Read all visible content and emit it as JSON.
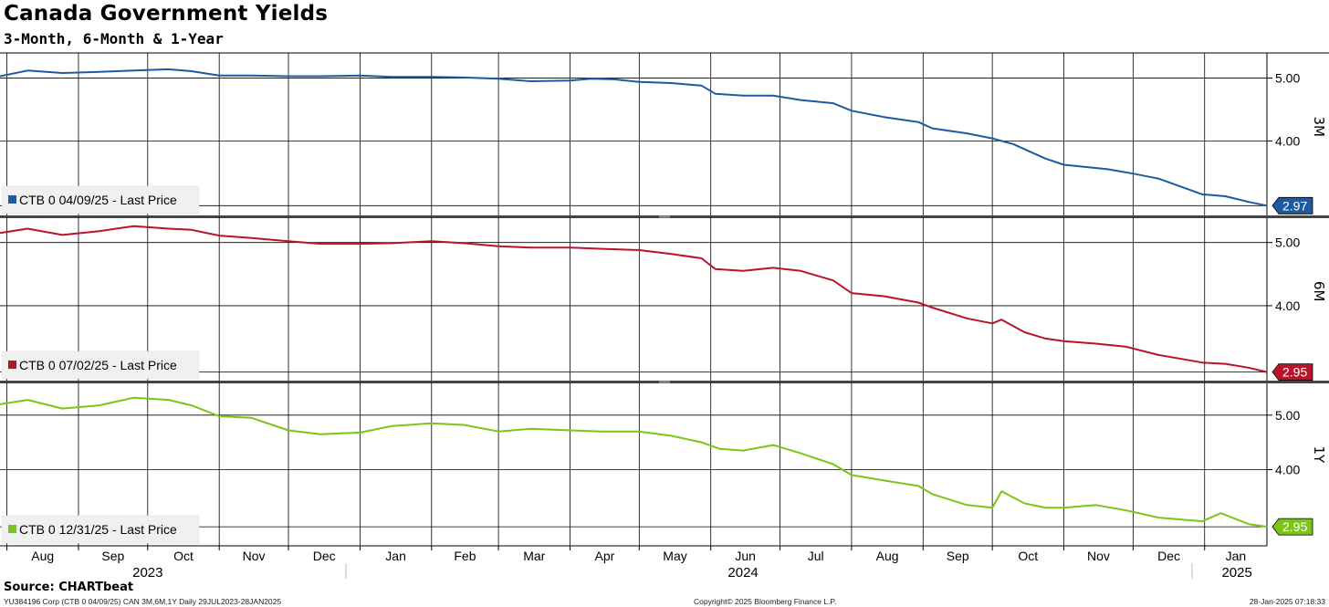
{
  "header": {
    "title": "Canada Government Yields",
    "subtitle": "3-Month, 6-Month & 1-Year"
  },
  "chart_data": {
    "type": "line",
    "x_range": [
      "2023-07-29",
      "2025-01-28"
    ],
    "month_labels": [
      "Aug",
      "Sep",
      "Oct",
      "Nov",
      "Dec",
      "Jan",
      "Feb",
      "Mar",
      "Apr",
      "May",
      "Jun",
      "Jul",
      "Aug",
      "Sep",
      "Oct",
      "Nov",
      "Dec",
      "Jan"
    ],
    "month_starts": [
      "2023-08-01",
      "2023-09-01",
      "2023-10-01",
      "2023-11-01",
      "2023-12-01",
      "2024-01-01",
      "2024-02-01",
      "2024-03-01",
      "2024-04-01",
      "2024-05-01",
      "2024-06-01",
      "2024-07-01",
      "2024-08-01",
      "2024-09-01",
      "2024-10-01",
      "2024-11-01",
      "2024-12-01",
      "2025-01-01"
    ],
    "year_labels": [
      {
        "label": "2023",
        "date": "2023-10-01"
      },
      {
        "label": "2024",
        "date": "2024-06-15"
      },
      {
        "label": "2025",
        "date": "2025-01-15"
      }
    ],
    "grid": true,
    "legend_placement": "bottom-left",
    "panels": [
      {
        "axis_label": "3M",
        "legend": "CTB 0 04/09/25 - Last Price",
        "color": "#1f5aa0",
        "last_value": "2.97",
        "ylim": [
          2.8,
          5.4
        ],
        "ticks": [
          {
            "value": 4.0,
            "label": "4.00"
          },
          {
            "value": 5.0,
            "label": "5.00"
          }
        ],
        "series": {
          "x": [
            "2023-07-29",
            "2023-08-10",
            "2023-08-25",
            "2023-09-10",
            "2023-09-25",
            "2023-10-10",
            "2023-10-20",
            "2023-11-01",
            "2023-11-15",
            "2023-12-01",
            "2023-12-15",
            "2024-01-01",
            "2024-01-15",
            "2024-02-01",
            "2024-02-15",
            "2024-03-01",
            "2024-03-15",
            "2024-04-01",
            "2024-04-10",
            "2024-04-20",
            "2024-05-01",
            "2024-05-15",
            "2024-05-28",
            "2024-06-03",
            "2024-06-15",
            "2024-06-28",
            "2024-07-10",
            "2024-07-24",
            "2024-08-01",
            "2024-08-15",
            "2024-08-30",
            "2024-09-05",
            "2024-09-20",
            "2024-10-01",
            "2024-10-10",
            "2024-10-24",
            "2024-11-01",
            "2024-11-20",
            "2024-12-01",
            "2024-12-12",
            "2024-12-31",
            "2025-01-10",
            "2025-01-20",
            "2025-01-28"
          ],
          "values": [
            5.03,
            5.12,
            5.08,
            5.1,
            5.12,
            5.14,
            5.11,
            5.04,
            5.04,
            5.03,
            5.03,
            5.04,
            5.02,
            5.02,
            5.01,
            4.99,
            4.95,
            4.96,
            4.99,
            4.98,
            4.94,
            4.92,
            4.88,
            4.75,
            4.72,
            4.72,
            4.65,
            4.6,
            4.48,
            4.38,
            4.3,
            4.2,
            4.12,
            4.04,
            3.95,
            3.72,
            3.62,
            3.55,
            3.48,
            3.4,
            3.15,
            3.12,
            3.03,
            2.97
          ]
        }
      },
      {
        "axis_label": "6M",
        "legend": "CTB 0 07/02/25 - Last Price",
        "color": "#b8142c",
        "last_value": "2.95",
        "ylim": [
          2.8,
          5.4
        ],
        "ticks": [
          {
            "value": 4.0,
            "label": "4.00"
          },
          {
            "value": 5.0,
            "label": "5.00"
          }
        ],
        "series": {
          "x": [
            "2023-07-29",
            "2023-08-10",
            "2023-08-25",
            "2023-09-10",
            "2023-09-25",
            "2023-10-10",
            "2023-10-20",
            "2023-11-01",
            "2023-11-15",
            "2023-12-01",
            "2023-12-15",
            "2024-01-01",
            "2024-01-15",
            "2024-02-01",
            "2024-02-15",
            "2024-03-01",
            "2024-03-15",
            "2024-04-01",
            "2024-04-15",
            "2024-05-01",
            "2024-05-15",
            "2024-05-28",
            "2024-06-03",
            "2024-06-15",
            "2024-06-28",
            "2024-07-10",
            "2024-07-24",
            "2024-08-01",
            "2024-08-15",
            "2024-08-30",
            "2024-09-05",
            "2024-09-20",
            "2024-10-01",
            "2024-10-05",
            "2024-10-15",
            "2024-10-24",
            "2024-11-01",
            "2024-11-15",
            "2024-11-28",
            "2024-12-12",
            "2024-12-31",
            "2025-01-10",
            "2025-01-20",
            "2025-01-28"
          ],
          "values": [
            5.15,
            5.22,
            5.12,
            5.18,
            5.26,
            5.22,
            5.2,
            5.11,
            5.07,
            5.02,
            4.98,
            4.98,
            4.99,
            5.02,
            4.99,
            4.94,
            4.92,
            4.92,
            4.9,
            4.88,
            4.82,
            4.75,
            4.58,
            4.55,
            4.6,
            4.55,
            4.4,
            4.2,
            4.15,
            4.05,
            3.97,
            3.8,
            3.72,
            3.78,
            3.58,
            3.48,
            3.44,
            3.4,
            3.35,
            3.22,
            3.1,
            3.08,
            3.02,
            2.95
          ]
        }
      },
      {
        "axis_label": "1Y",
        "legend": "CTB 0 12/31/25 - Last Price",
        "color": "#7ac618",
        "last_value": "2.95",
        "ylim": [
          2.6,
          5.6
        ],
        "ticks": [
          {
            "value": 4.0,
            "label": "4.00"
          },
          {
            "value": 5.0,
            "label": "5.00"
          }
        ],
        "series": {
          "x": [
            "2023-07-29",
            "2023-08-10",
            "2023-08-25",
            "2023-09-10",
            "2023-09-25",
            "2023-10-10",
            "2023-10-20",
            "2023-11-01",
            "2023-11-15",
            "2023-12-01",
            "2023-12-15",
            "2024-01-01",
            "2024-01-15",
            "2024-02-01",
            "2024-02-15",
            "2024-03-01",
            "2024-03-15",
            "2024-04-01",
            "2024-04-15",
            "2024-05-01",
            "2024-05-15",
            "2024-05-28",
            "2024-06-05",
            "2024-06-15",
            "2024-06-28",
            "2024-07-10",
            "2024-07-24",
            "2024-08-01",
            "2024-08-15",
            "2024-08-30",
            "2024-09-05",
            "2024-09-20",
            "2024-10-01",
            "2024-10-05",
            "2024-10-15",
            "2024-10-24",
            "2024-11-01",
            "2024-11-15",
            "2024-11-28",
            "2024-12-12",
            "2024-12-31",
            "2025-01-08",
            "2025-01-20",
            "2025-01-28"
          ],
          "values": [
            5.2,
            5.28,
            5.12,
            5.18,
            5.32,
            5.28,
            5.18,
            4.98,
            4.95,
            4.72,
            4.65,
            4.68,
            4.8,
            4.85,
            4.82,
            4.7,
            4.75,
            4.72,
            4.7,
            4.7,
            4.62,
            4.5,
            4.38,
            4.35,
            4.45,
            4.3,
            4.1,
            3.9,
            3.8,
            3.7,
            3.55,
            3.35,
            3.3,
            3.6,
            3.38,
            3.3,
            3.3,
            3.35,
            3.25,
            3.12,
            3.05,
            3.2,
            3.0,
            2.95
          ]
        }
      }
    ]
  },
  "footer": {
    "source": "Source: CHARTbeat",
    "ticker_line": "YU384196 Corp (CTB 0 04/09/25) CAN 3M,6M,1Y  Daily 29JUL2023-28JAN2025",
    "copyright": "Copyright© 2025 Bloomberg Finance L.P.",
    "timestamp": "28-Jan-2025 07:18:33"
  }
}
